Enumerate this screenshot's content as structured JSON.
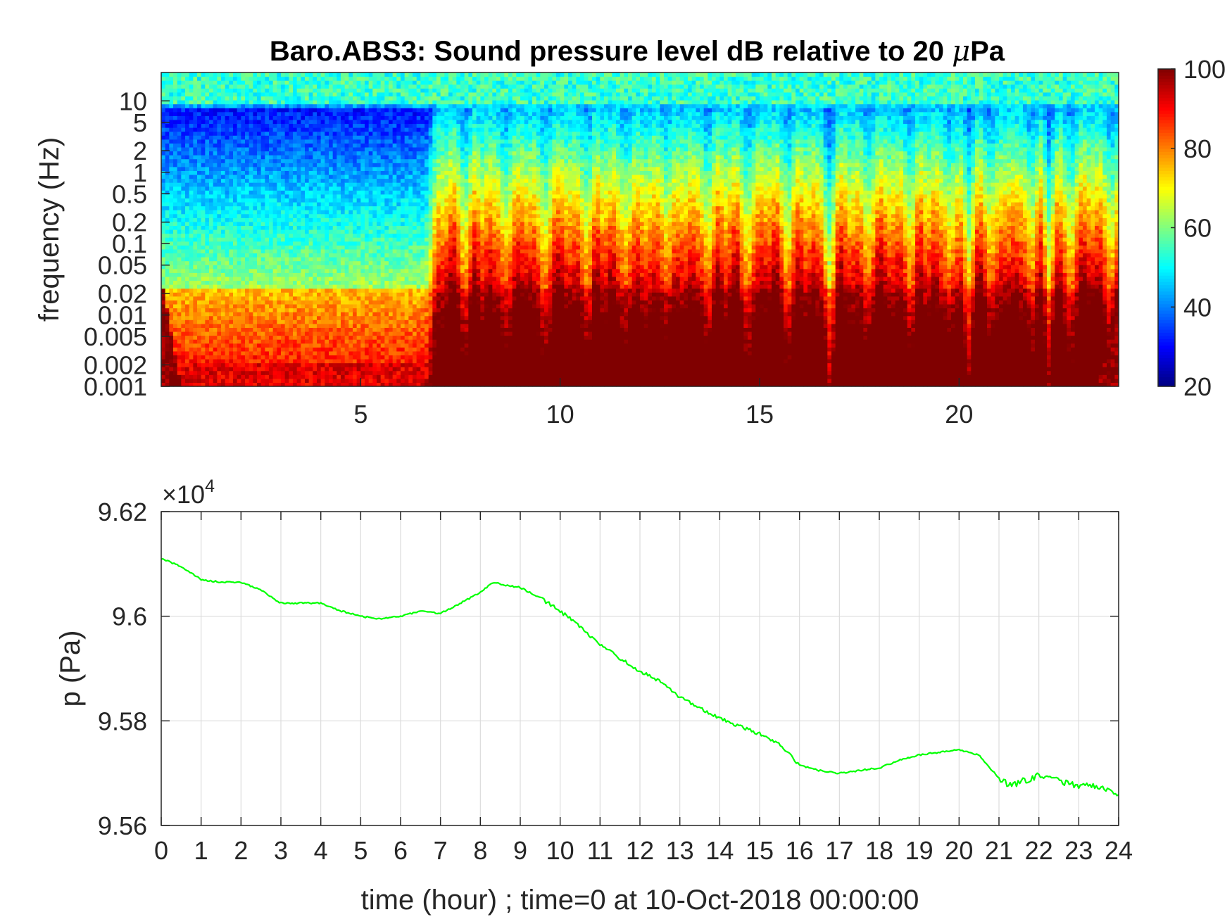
{
  "chart_data": [
    {
      "type": "heatmap",
      "title": "Baro.ABS3: Sound pressure level dB relative to 20 μPa",
      "title_prefix": "Baro.ABS3: Sound pressure level dB relative to 20 ",
      "title_mu": "μ",
      "title_suffix": "Pa",
      "ylabel": "frequency (Hz)",
      "xlabel": "",
      "x_ticks": [
        5,
        10,
        15,
        20
      ],
      "x_tick_labels": [
        "5",
        "10",
        "15",
        "20"
      ],
      "xlim": [
        0,
        24
      ],
      "y_scale": "log",
      "y_ticks": [
        0.001,
        0.002,
        0.005,
        0.01,
        0.02,
        0.05,
        0.1,
        0.2,
        0.5,
        1,
        2,
        5,
        10
      ],
      "y_tick_labels": [
        "0.001",
        "0.002",
        "0.005",
        "0.01",
        "0.02",
        "0.05",
        "0.1",
        "0.2",
        "0.5",
        "1",
        "2",
        "5",
        "10"
      ],
      "ylim": [
        0.001,
        25
      ],
      "colormap": "jet",
      "clim": [
        20,
        100
      ],
      "colorbar_ticks": [
        20,
        40,
        60,
        80,
        100
      ],
      "colorbar_tick_labels": [
        "20",
        "40",
        "60",
        "80",
        "100"
      ],
      "active_periods_hours": [
        [
          7,
          16.5
        ],
        [
          17,
          20
        ],
        [
          20.5,
          22
        ],
        [
          22.5,
          24
        ]
      ],
      "quiet_period_hours": [
        0,
        7
      ]
    },
    {
      "type": "line",
      "xlabel": "time (hour) ; time=0 at 10-Oct-2018 00:00:00",
      "ylabel": "p (Pa)",
      "y_multiplier": "×10^4",
      "y_multiplier_base": "×10",
      "y_multiplier_exp": "4",
      "xlim": [
        0,
        24
      ],
      "ylim": [
        9.56,
        9.62
      ],
      "x_ticks": [
        0,
        1,
        2,
        3,
        4,
        5,
        6,
        7,
        8,
        9,
        10,
        11,
        12,
        13,
        14,
        15,
        16,
        17,
        18,
        19,
        20,
        21,
        22,
        23,
        24
      ],
      "x_tick_labels": [
        "0",
        "1",
        "2",
        "3",
        "4",
        "5",
        "6",
        "7",
        "8",
        "9",
        "10",
        "11",
        "12",
        "13",
        "14",
        "15",
        "16",
        "17",
        "18",
        "19",
        "20",
        "21",
        "22",
        "23",
        "24"
      ],
      "y_ticks": [
        9.56,
        9.58,
        9.6,
        9.62
      ],
      "y_tick_labels": [
        "9.56",
        "9.58",
        "9.6",
        "9.62"
      ],
      "grid": true,
      "series": [
        {
          "color": "#00ff00",
          "x": [
            0,
            0.5,
            1,
            1.5,
            2,
            2.5,
            3,
            3.5,
            4,
            4.5,
            5,
            5.5,
            6,
            6.5,
            7,
            7.5,
            8,
            8.3,
            8.6,
            9,
            9.5,
            10,
            10.5,
            11,
            11.5,
            12,
            12.5,
            13,
            13.5,
            14,
            14.5,
            15,
            15.5,
            16,
            16.5,
            17,
            17.5,
            18,
            18.5,
            19,
            19.5,
            20,
            20.5,
            21,
            21.3,
            21.6,
            22,
            22.5,
            23,
            23.5,
            24
          ],
          "y": [
            9.611,
            9.6095,
            9.607,
            9.6065,
            9.6065,
            9.605,
            9.6025,
            9.6025,
            9.6025,
            9.601,
            9.6,
            9.5995,
            9.6,
            9.601,
            9.6005,
            9.6025,
            9.6045,
            9.6065,
            9.606,
            9.6055,
            9.6035,
            9.601,
            9.598,
            9.5945,
            9.592,
            9.5895,
            9.5875,
            9.5845,
            9.5825,
            9.5805,
            9.579,
            9.5775,
            9.5755,
            9.5715,
            9.5705,
            9.57,
            9.5705,
            9.571,
            9.5725,
            9.5735,
            9.574,
            9.5745,
            9.5735,
            9.569,
            9.5675,
            9.5685,
            9.5695,
            9.5685,
            9.5675,
            9.5675,
            9.5655
          ]
        }
      ]
    }
  ]
}
